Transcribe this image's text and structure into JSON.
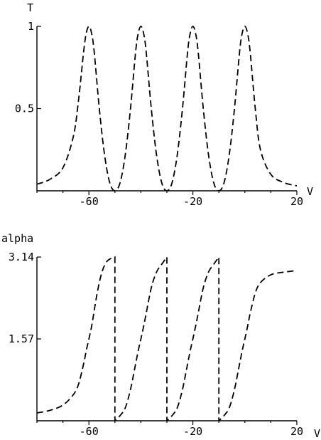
{
  "chart_data": [
    {
      "type": "line",
      "title": "",
      "xlabel": "V",
      "ylabel": "T",
      "xlim": [
        -80,
        20
      ],
      "ylim": [
        0,
        1
      ],
      "xticks": [
        -60,
        -20,
        20
      ],
      "xtick_labels": [
        "-60",
        "-20",
        "20"
      ],
      "yticks": [
        0.5,
        1
      ],
      "ytick_labels": [
        "0.5",
        "1"
      ],
      "grid": false,
      "style": "dashed",
      "series": [
        {
          "x": [
            -80,
            -75,
            -70,
            -66,
            -64,
            -62,
            -61,
            -60,
            -59,
            -58,
            -56,
            -54,
            -52,
            -50,
            -48,
            -46,
            -44,
            -42,
            -41,
            -40,
            -39,
            -38,
            -36,
            -34,
            -32,
            -30,
            -28,
            -26,
            -24,
            -22,
            -21,
            -20,
            -19,
            -18,
            -16,
            -14,
            -12,
            -10,
            -8,
            -6,
            -4,
            -2,
            -1,
            0,
            1,
            2,
            4,
            6,
            10,
            15,
            20
          ],
          "values": [
            0.04,
            0.07,
            0.14,
            0.33,
            0.55,
            0.85,
            0.96,
            1.0,
            0.96,
            0.85,
            0.5,
            0.22,
            0.05,
            0.0,
            0.05,
            0.22,
            0.5,
            0.85,
            0.96,
            1.0,
            0.96,
            0.85,
            0.5,
            0.22,
            0.05,
            0.0,
            0.05,
            0.22,
            0.5,
            0.85,
            0.96,
            1.0,
            0.96,
            0.85,
            0.5,
            0.22,
            0.05,
            0.0,
            0.05,
            0.22,
            0.5,
            0.85,
            0.96,
            1.0,
            0.96,
            0.85,
            0.5,
            0.25,
            0.1,
            0.05,
            0.03
          ]
        }
      ]
    },
    {
      "type": "line",
      "title": "",
      "xlabel": "V",
      "ylabel": "alpha",
      "xlim": [
        -80,
        20
      ],
      "ylim": [
        0,
        3.14
      ],
      "xticks": [
        -60,
        -20,
        20
      ],
      "xtick_labels": [
        "-60",
        "-20",
        "20"
      ],
      "yticks": [
        1.57,
        3.14
      ],
      "ytick_labels": [
        "1.57",
        "3.14"
      ],
      "grid": false,
      "style": "dashed",
      "series": [
        {
          "segments": [
            {
              "x": [
                -80,
                -75,
                -70,
                -66,
                -64,
                -62,
                -61,
                -60,
                -59,
                -58,
                -57,
                -56,
                -55,
                -54,
                -53,
                -52,
                -51,
                -50
              ],
              "values": [
                0.15,
                0.2,
                0.3,
                0.5,
                0.7,
                1.1,
                1.35,
                1.57,
                1.8,
                2.1,
                2.4,
                2.65,
                2.85,
                2.98,
                3.06,
                3.1,
                3.12,
                3.14
              ]
            },
            {
              "x": [
                -50,
                -48,
                -46,
                -44,
                -42,
                -41,
                -40,
                -39,
                -38,
                -36,
                -34,
                -32,
                -30
              ],
              "values": [
                0.0,
                0.1,
                0.25,
                0.6,
                1.1,
                1.35,
                1.57,
                1.8,
                2.05,
                2.55,
                2.85,
                3.0,
                3.14
              ]
            },
            {
              "x": [
                -30,
                -28,
                -26,
                -24,
                -22,
                -21,
                -20,
                -19,
                -18,
                -16,
                -14,
                -12,
                -10
              ],
              "values": [
                0.0,
                0.1,
                0.25,
                0.6,
                1.1,
                1.35,
                1.57,
                1.8,
                2.05,
                2.55,
                2.85,
                3.0,
                3.14
              ]
            },
            {
              "x": [
                -10,
                -8,
                -6,
                -4,
                -2,
                -1,
                0,
                1,
                2,
                4,
                6,
                10,
                15,
                20
              ],
              "values": [
                0.0,
                0.1,
                0.25,
                0.6,
                1.1,
                1.35,
                1.57,
                1.8,
                2.05,
                2.45,
                2.65,
                2.8,
                2.85,
                2.88
              ]
            }
          ]
        }
      ]
    }
  ]
}
